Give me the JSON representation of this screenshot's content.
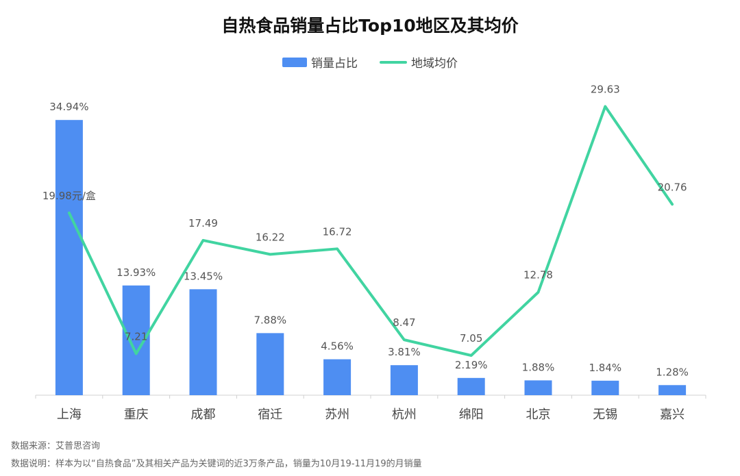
{
  "title": "自热食品销量占比Top10地区及其均价",
  "legend": {
    "bar_label": "销量占比",
    "line_label": "地域均价"
  },
  "footer": {
    "source": "数据来源：艾普思咨询",
    "note": "数据说明：样本为以“自热食品”及其相关产品为关键词的近3万条产品，销量为10月19-11月19的月销量"
  },
  "colors": {
    "bar": "#4e8ef2",
    "line": "#41d4a1",
    "axis": "#d0d0d0",
    "label": "#555555"
  },
  "chart_data": {
    "type": "bar",
    "title": "自热食品销量占比Top10地区及其均价",
    "categories": [
      "上海",
      "重庆",
      "成都",
      "宿迁",
      "苏州",
      "杭州",
      "绵阳",
      "北京",
      "无锡",
      "嘉兴"
    ],
    "series": [
      {
        "name": "销量占比",
        "type": "bar",
        "values": [
          34.94,
          13.93,
          13.45,
          7.88,
          4.56,
          3.81,
          2.19,
          1.88,
          1.84,
          1.28
        ],
        "labels": [
          "34.94%",
          "13.93%",
          "13.45%",
          "7.88%",
          "4.56%",
          "3.81%",
          "2.19%",
          "1.88%",
          "1.84%",
          "1.28%"
        ]
      },
      {
        "name": "地域均价",
        "type": "line",
        "values": [
          19.98,
          7.21,
          17.49,
          16.22,
          16.72,
          8.47,
          7.05,
          12.78,
          29.63,
          20.76
        ],
        "labels": [
          "19.98元/盒",
          "7.21",
          "17.49",
          "16.22",
          "16.72",
          "8.47",
          "7.05",
          "12.78",
          "29.63",
          "20.76"
        ]
      }
    ],
    "xlabel": "",
    "ylabel": "",
    "grid": false,
    "legend_position": "top-center"
  }
}
